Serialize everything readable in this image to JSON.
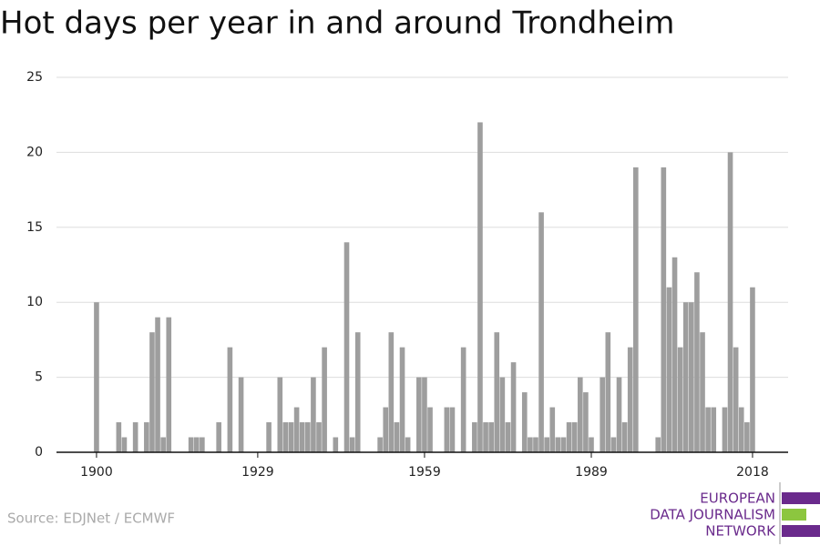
{
  "chart_data": {
    "type": "bar",
    "title": "Hot days per year in and around Trondheim",
    "source": "Source: EDJNet / ECMWF",
    "color": "#9e9e9e",
    "x": [
      1900,
      1901,
      1902,
      1903,
      1904,
      1905,
      1906,
      1907,
      1908,
      1909,
      1910,
      1911,
      1912,
      1913,
      1914,
      1915,
      1916,
      1917,
      1918,
      1919,
      1920,
      1921,
      1922,
      1923,
      1924,
      1925,
      1926,
      1927,
      1928,
      1929,
      1930,
      1931,
      1932,
      1933,
      1934,
      1935,
      1936,
      1937,
      1938,
      1939,
      1940,
      1941,
      1942,
      1943,
      1944,
      1945,
      1946,
      1947,
      1948,
      1949,
      1950,
      1951,
      1952,
      1953,
      1954,
      1955,
      1956,
      1957,
      1958,
      1959,
      1960,
      1961,
      1962,
      1963,
      1964,
      1965,
      1966,
      1967,
      1968,
      1969,
      1970,
      1971,
      1972,
      1973,
      1974,
      1975,
      1976,
      1977,
      1978,
      1979,
      1980,
      1981,
      1982,
      1983,
      1984,
      1985,
      1986,
      1987,
      1988,
      1989,
      1990,
      1991,
      1992,
      1993,
      1994,
      1995,
      1996,
      1997,
      1998,
      1999,
      2000,
      2001,
      2002,
      2003,
      2004,
      2005,
      2006,
      2007,
      2008,
      2009,
      2010,
      2011,
      2012,
      2013,
      2014,
      2015,
      2016,
      2017,
      2018
    ],
    "values": [
      10,
      0,
      0,
      0,
      2,
      1,
      0,
      2,
      0,
      2,
      8,
      9,
      1,
      9,
      0,
      0,
      0,
      1,
      1,
      1,
      0,
      0,
      2,
      0,
      7,
      0,
      5,
      0,
      0,
      0,
      0,
      2,
      0,
      5,
      2,
      2,
      3,
      2,
      2,
      5,
      2,
      7,
      0,
      1,
      0,
      14,
      1,
      8,
      0,
      0,
      0,
      1,
      3,
      8,
      2,
      7,
      1,
      0,
      5,
      5,
      3,
      0,
      0,
      3,
      3,
      0,
      7,
      0,
      2,
      22,
      2,
      2,
      8,
      5,
      2,
      6,
      0,
      4,
      1,
      1,
      16,
      1,
      3,
      1,
      1,
      2,
      2,
      5,
      4,
      1,
      0,
      5,
      8,
      1,
      5,
      2,
      7,
      19,
      0,
      0,
      0,
      1,
      19,
      11,
      13,
      7,
      10,
      10,
      12,
      8,
      3,
      3,
      0,
      3,
      20,
      7,
      3,
      2,
      11
    ],
    "xlim": [
      1892.8,
      2024.4
    ],
    "xticks": [
      1900,
      1929,
      1959,
      1989,
      2018
    ],
    "ylim": [
      0,
      25
    ],
    "yticks": [
      0,
      5,
      10,
      15,
      20,
      25
    ],
    "grid": true
  },
  "logo": {
    "lines": [
      "EUROPEAN",
      "DATA JOURNALISM",
      "NETWORK"
    ]
  }
}
